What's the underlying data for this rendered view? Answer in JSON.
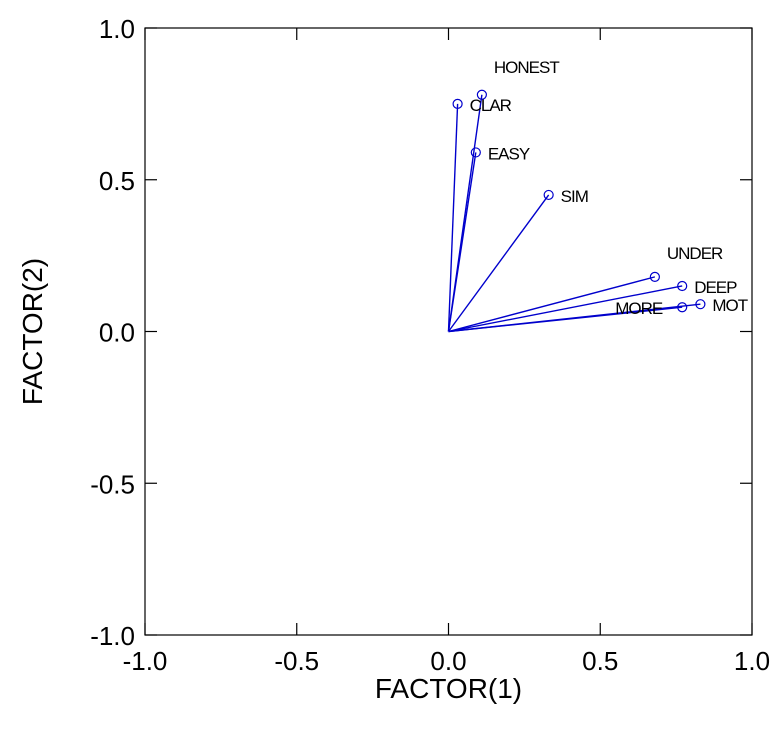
{
  "chart_data": {
    "type": "scatter",
    "subtype": "factor-loading-biplot",
    "title": "",
    "xlabel": "FACTOR(1)",
    "ylabel": "FACTOR(2)",
    "xlim": [
      -1.0,
      1.0
    ],
    "ylim": [
      -1.0,
      1.0
    ],
    "xticks": [
      -1.0,
      -0.5,
      0.0,
      0.5,
      1.0
    ],
    "yticks": [
      -1.0,
      -0.5,
      0.0,
      0.5,
      1.0
    ],
    "xtick_labels": [
      "-1.0",
      "-0.5",
      "0.0",
      "0.5",
      "1.0"
    ],
    "ytick_labels": [
      "-1.0",
      "-0.5",
      "0.0",
      "0.5",
      "1.0"
    ],
    "grid": false,
    "vector_color": "#0000cc",
    "points": [
      {
        "label": "HONEST",
        "x": 0.11,
        "y": 0.78
      },
      {
        "label": "CLAR",
        "x": 0.03,
        "y": 0.75
      },
      {
        "label": "EASY",
        "x": 0.09,
        "y": 0.59
      },
      {
        "label": "SIM",
        "x": 0.33,
        "y": 0.45
      },
      {
        "label": "UNDER",
        "x": 0.68,
        "y": 0.18
      },
      {
        "label": "DEEP",
        "x": 0.77,
        "y": 0.15
      },
      {
        "label": "MOT",
        "x": 0.83,
        "y": 0.09
      },
      {
        "label": "MORE",
        "x": 0.77,
        "y": 0.08
      }
    ]
  }
}
